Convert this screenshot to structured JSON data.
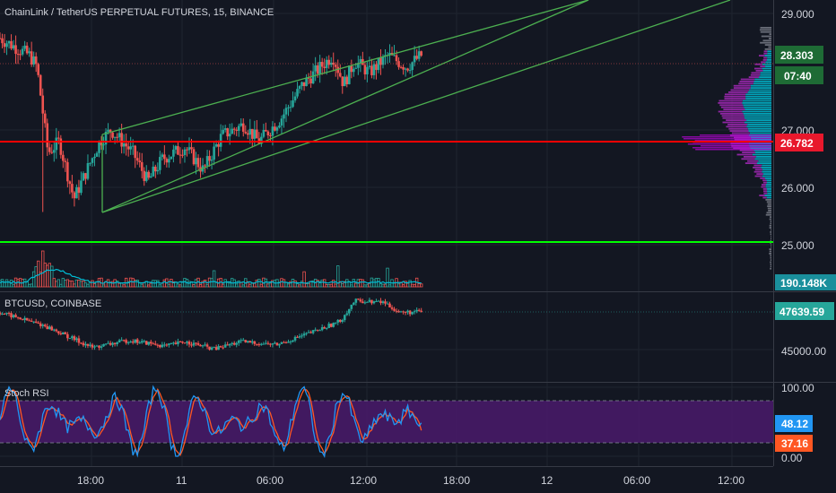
{
  "panes": {
    "main": {
      "title": "ChainLink / TetherUS PERPETUAL FUTURES, 15, BINANCE",
      "price_ticks": [
        "29.000",
        "27.000",
        "26.000",
        "25.000"
      ],
      "last_price": "28.303",
      "countdown": "07:40",
      "support_price": "26.782",
      "volume_label": "190.148K"
    },
    "btc": {
      "title": "BTCUSD, COINBASE",
      "last_price": "47639.59",
      "tick": "45000.00"
    },
    "rsi": {
      "title": "Stoch RSI",
      "ticks": [
        "100.00",
        "0.00"
      ],
      "k_value": "48.12",
      "d_value": "37.16"
    }
  },
  "time_axis": [
    "18:00",
    "11",
    "06:00",
    "12:00",
    "18:00",
    "12",
    "06:00",
    "12:00"
  ],
  "colors": {
    "background": "#131722",
    "up": "#26a69a",
    "down": "#ef5350",
    "channel": "#4caf50",
    "support_line": "#ff0000",
    "green_line": "#00ff00",
    "profile_cyan": "#00bcd4",
    "profile_magenta": "#9c27b0",
    "rsi_k": "#2196f3",
    "rsi_d": "#ff5722",
    "rsi_band": "#4a1a6b"
  },
  "chart_data": [
    {
      "type": "candlestick",
      "title": "ChainLink / TetherUS PERPETUAL FUTURES, 15, BINANCE",
      "y_ticks": [
        25,
        26,
        27,
        29
      ],
      "ylim": [
        24.6,
        29.2
      ],
      "last_price": 28.303,
      "horizontal_levels": [
        26.782,
        25.0
      ],
      "channel": {
        "lower_start": 25.55,
        "upper_start": 26.95,
        "slope_per_day": 1.9
      },
      "anchors": [
        {
          "t": 0,
          "p": 28.6
        },
        {
          "t": 0.08,
          "p": 28.3
        },
        {
          "t": 0.1,
          "p": 28.1
        },
        {
          "t": 0.13,
          "p": 26.6
        },
        {
          "t": 0.16,
          "p": 26.8
        },
        {
          "t": 0.2,
          "p": 25.8
        },
        {
          "t": 0.27,
          "p": 26.8
        },
        {
          "t": 0.3,
          "p": 27.0
        },
        {
          "t": 0.36,
          "p": 26.6
        },
        {
          "t": 0.4,
          "p": 26.1
        },
        {
          "t": 0.44,
          "p": 26.5
        },
        {
          "t": 0.5,
          "p": 26.7
        },
        {
          "t": 0.55,
          "p": 26.3
        },
        {
          "t": 0.6,
          "p": 26.9
        },
        {
          "t": 0.66,
          "p": 27.1
        },
        {
          "t": 0.7,
          "p": 26.8
        },
        {
          "t": 0.76,
          "p": 27.2
        },
        {
          "t": 0.82,
          "p": 27.8
        },
        {
          "t": 0.9,
          "p": 28.3
        },
        {
          "t": 0.93,
          "p": 27.8
        },
        {
          "t": 0.96,
          "p": 28.2
        },
        {
          "t": 1.0,
          "p": 28.0
        },
        {
          "t": 1.05,
          "p": 28.3
        },
        {
          "t": 1.1,
          "p": 28.1
        },
        {
          "t": 1.14,
          "p": 28.3
        }
      ]
    },
    {
      "type": "candlestick",
      "title": "BTCUSD, COINBASE",
      "y_ticks": [
        45000
      ],
      "ylim": [
        44000,
        49200
      ],
      "last_price": 47639.59,
      "anchors": [
        {
          "t": 0,
          "p": 47600
        },
        {
          "t": 0.12,
          "p": 46700
        },
        {
          "t": 0.25,
          "p": 45200
        },
        {
          "t": 0.35,
          "p": 45700
        },
        {
          "t": 0.45,
          "p": 45300
        },
        {
          "t": 0.5,
          "p": 45600
        },
        {
          "t": 0.58,
          "p": 45100
        },
        {
          "t": 0.65,
          "p": 45600
        },
        {
          "t": 0.75,
          "p": 45400
        },
        {
          "t": 0.85,
          "p": 46300
        },
        {
          "t": 0.92,
          "p": 47000
        },
        {
          "t": 0.96,
          "p": 48400
        },
        {
          "t": 1.04,
          "p": 48300
        },
        {
          "t": 1.08,
          "p": 47600
        },
        {
          "t": 1.14,
          "p": 47640
        }
      ]
    },
    {
      "type": "line",
      "title": "Stoch RSI",
      "y_ticks": [
        0,
        100
      ],
      "ylim": [
        -10,
        110
      ],
      "bands": [
        20,
        80
      ],
      "series": [
        {
          "name": "K",
          "last": 48.12
        },
        {
          "name": "D",
          "last": 37.16
        }
      ]
    }
  ]
}
